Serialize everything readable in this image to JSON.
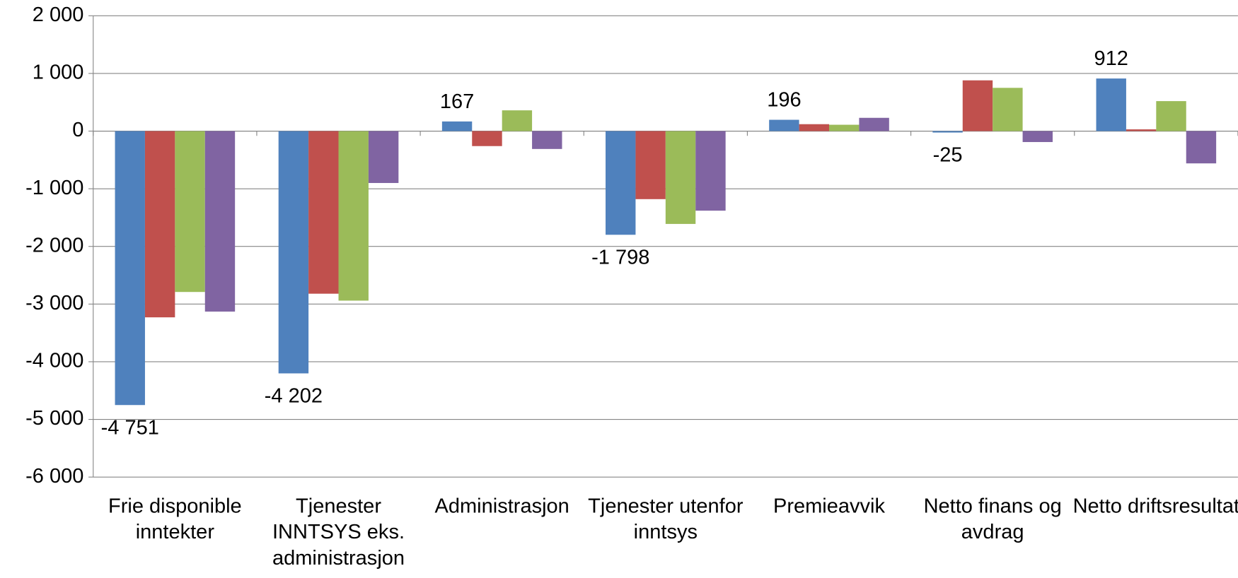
{
  "chart_data": {
    "type": "bar",
    "categories": [
      "Frie disponible inntekter",
      "Tjenester INNTSYS eks. administrasjon",
      "Administrasjon",
      "Tjenester utenfor inntsys",
      "Premieavvik",
      "Netto finans og avdrag",
      "Netto driftsresultat"
    ],
    "series": [
      {
        "color": "#4f81bd",
        "values": [
          -4751,
          -4202,
          167,
          -1798,
          196,
          -25,
          912
        ],
        "value_labels": [
          "-4 751",
          "-4 202",
          "167",
          "-1 798",
          "196",
          "-25",
          "912"
        ]
      },
      {
        "color": "#c0504d",
        "values": [
          -3230,
          -2820,
          -260,
          -1180,
          120,
          880,
          30
        ]
      },
      {
        "color": "#9bbb59",
        "values": [
          -2790,
          -2940,
          360,
          -1610,
          110,
          750,
          520
        ]
      },
      {
        "color": "#8064a2",
        "values": [
          -3130,
          -900,
          -310,
          -1380,
          230,
          -190,
          -560
        ]
      }
    ],
    "ylim": [
      -6000,
      2000
    ],
    "yticks": [
      {
        "value": -6000,
        "label": "-6 000"
      },
      {
        "value": -5000,
        "label": "-5 000"
      },
      {
        "value": -4000,
        "label": "-4 000"
      },
      {
        "value": -3000,
        "label": "-3 000"
      },
      {
        "value": -2000,
        "label": "-2 000"
      },
      {
        "value": -1000,
        "label": "-1 000"
      },
      0,
      {
        "value": 1000,
        "label": "1 000"
      },
      {
        "value": 2000,
        "label": "2 000"
      }
    ],
    "grid": true
  }
}
